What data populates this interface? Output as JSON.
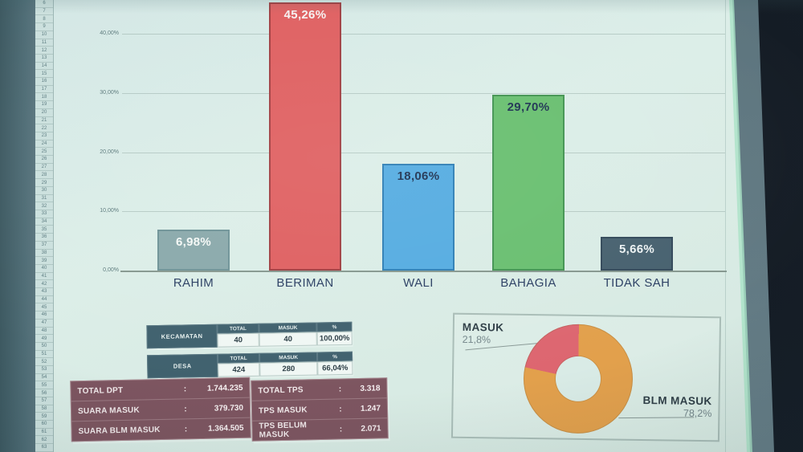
{
  "colors": {
    "bar_fills": [
      "#8aa9ab",
      "#df6061",
      "#55ace1",
      "#69bf70",
      "#47616f"
    ],
    "bar_borders": [
      "#6f9397",
      "#a13e41",
      "#2f7fb5",
      "#439452",
      "#33495a"
    ],
    "bar_label_colors": [
      "#f4f8f6",
      "#f7f2f2",
      "#1e3352",
      "#1e3352",
      "#eef3f4"
    ],
    "donut_masuk": "#dd6670",
    "donut_blm": "#e2a04c"
  },
  "spreadsheet": {
    "first_row": 6,
    "last_row": 63
  },
  "chart_data": [
    {
      "type": "bar",
      "title": "",
      "xlabel": "",
      "ylabel": "",
      "categories": [
        "RAHIM",
        "BERIMAN",
        "WALI",
        "BAHAGIA",
        "TIDAK SAH"
      ],
      "values": [
        6.98,
        45.26,
        18.06,
        29.7,
        5.66
      ],
      "value_labels": [
        "6,98%",
        "45,26%",
        "18,06%",
        "29,70%",
        "5,66%"
      ],
      "ylim": [
        0,
        45.3
      ],
      "grid": true,
      "y_ticks": [
        {
          "value": 40,
          "label": "40,00%"
        },
        {
          "value": 30,
          "label": "30,00%"
        },
        {
          "value": 20,
          "label": "20,00%"
        },
        {
          "value": 10,
          "label": "10,00%"
        },
        {
          "value": 0,
          "label": "0,00%"
        }
      ]
    },
    {
      "type": "pie",
      "subtype": "donut",
      "labels": [
        "MASUK",
        "BLM MASUK"
      ],
      "values": [
        21.8,
        78.2
      ],
      "value_labels": [
        "21,8%",
        "78,2%"
      ],
      "colors": [
        "#dd6670",
        "#e2a04c"
      ]
    }
  ],
  "region_tables": {
    "kecamatan": {
      "row_label": "KECAMATAN",
      "col_headers": [
        "TOTAL",
        "MASUK",
        "%"
      ],
      "values": [
        "40",
        "40",
        "100,00%"
      ]
    },
    "desa": {
      "row_label": "DESA",
      "col_headers": [
        "TOTAL",
        "MASUK",
        "%"
      ],
      "values": [
        "424",
        "280",
        "66,04%"
      ]
    }
  },
  "dpt_table": {
    "rows": [
      {
        "label": "TOTAL DPT",
        "sep": ":",
        "value": "1.744.235"
      },
      {
        "label": "SUARA MASUK",
        "sep": ":",
        "value": "379.730"
      },
      {
        "label": "SUARA BLM MASUK",
        "sep": ":",
        "value": "1.364.505"
      }
    ]
  },
  "tps_table": {
    "rows": [
      {
        "label": "TOTAL TPS",
        "sep": ":",
        "value": "3.318"
      },
      {
        "label": "TPS MASUK",
        "sep": ":",
        "value": "1.247"
      },
      {
        "label": "TPS BELUM MASUK",
        "sep": ":",
        "value": "2.071"
      }
    ]
  },
  "donut_panel": {
    "masuk_title": "MASUK",
    "masuk_pct": "21,8%",
    "blm_title": "BLM MASUK",
    "blm_pct": "78,2%"
  }
}
